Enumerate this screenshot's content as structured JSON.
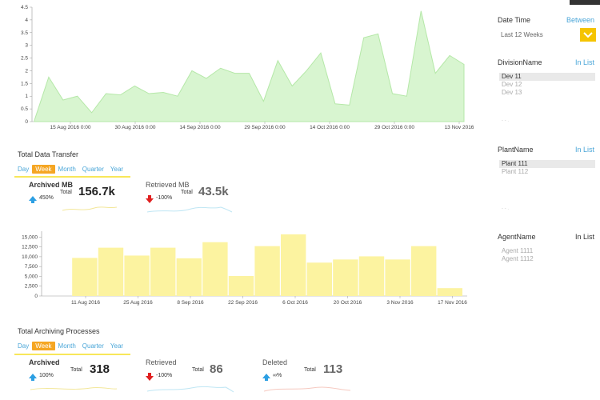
{
  "colors": {
    "accent": "#f5a623",
    "link": "#4aa6d8",
    "area_fill": "#d8f5d0",
    "area_stroke": "#b5e8a8",
    "bar_fill": "#fcf3a0",
    "arrow_up": "#2c9fe3",
    "arrow_down": "#e02020"
  },
  "chart_data": [
    {
      "type": "area",
      "title": "",
      "ylim": [
        0,
        4.5
      ],
      "yticks": [
        "0",
        "0.5",
        "1",
        "1.5",
        "2",
        "2.5",
        "3",
        "3.5",
        "4",
        "4.5"
      ],
      "xtick_labels": [
        "15 Aug 2016 0:00",
        "30 Aug 2016 0:00",
        "14 Sep 2016 0:00",
        "29 Sep 2016 0:00",
        "14 Oct 2016 0:00",
        "29 Oct 2016 0:00",
        "13 Nov 2016"
      ],
      "values": [
        0.05,
        1.75,
        0.85,
        1.0,
        0.35,
        1.1,
        1.05,
        1.4,
        1.1,
        1.15,
        1.0,
        2.0,
        1.7,
        2.1,
        1.9,
        1.9,
        0.8,
        2.4,
        1.4,
        2.0,
        2.7,
        0.7,
        0.65,
        3.3,
        3.45,
        1.1,
        1.0,
        4.35,
        1.9,
        2.6,
        2.25
      ]
    },
    {
      "type": "bar",
      "title": "",
      "ylim": [
        0,
        15000
      ],
      "yticks": [
        "0",
        "2,500",
        "5,000",
        "7,500",
        "10,000",
        "12,500",
        "15,000"
      ],
      "xtick_labels": [
        "11 Aug 2016",
        "25 Aug 2016",
        "8 Sep 2016",
        "22 Sep 2016",
        "6 Oct 2016",
        "20 Oct 2016",
        "3 Nov 2016",
        "17 Nov 2016"
      ],
      "values": [
        0,
        9700,
        12300,
        10300,
        12300,
        9600,
        13700,
        5100,
        12700,
        15700,
        8500,
        9300,
        10100,
        9300,
        12700,
        2000
      ]
    }
  ],
  "section1": {
    "title": "Total Data Transfer",
    "tabs": [
      "Day",
      "Week",
      "Month",
      "Quarter",
      "Year"
    ],
    "cards": [
      {
        "title": "Archived MB",
        "change": "450%",
        "total_label": "Total",
        "value": "156.7k"
      },
      {
        "title": "Retrieved MB",
        "change": "-100%",
        "total_label": "Total",
        "value": "43.5k"
      }
    ]
  },
  "section2": {
    "title": "Total Archiving Processes",
    "tabs": [
      "Day",
      "Week",
      "Month",
      "Quarter",
      "Year"
    ],
    "cards": [
      {
        "title": "Archived",
        "change": "100%",
        "total_label": "Total",
        "value": "318"
      },
      {
        "title": "Retrieved",
        "change": "-100%",
        "total_label": "Total",
        "value": "86"
      },
      {
        "title": "Deleted",
        "change": "∞%",
        "total_label": "Total",
        "value": "113"
      }
    ]
  },
  "filters": {
    "datetime": {
      "label": "Date Time",
      "mode": "Between",
      "value": "Last 12 Weeks"
    },
    "division": {
      "label": "DivisionName",
      "mode": "In List",
      "items": [
        "Dev 11",
        "Dev 12",
        "Dev 13"
      ]
    },
    "plant": {
      "label": "PlantName",
      "mode": "In List",
      "items": [
        "Plant 111",
        "Plant 112"
      ]
    },
    "agent": {
      "label": "AgentName",
      "mode": "In List",
      "items": [
        "Agent 1111",
        "Agent 1112"
      ]
    }
  }
}
